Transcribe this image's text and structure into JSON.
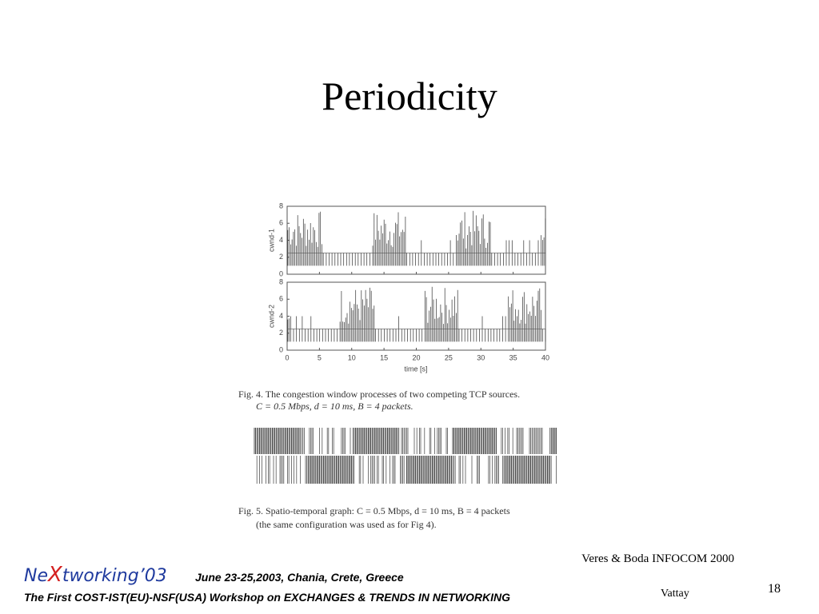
{
  "title": "Periodicity",
  "figure": {
    "plots": [
      {
        "ylabel": "cwnd-1",
        "ylim": [
          0,
          8
        ],
        "yticks": [
          0,
          2,
          4,
          6,
          8
        ]
      },
      {
        "ylabel": "cwnd-2",
        "ylim": [
          0,
          8
        ],
        "yticks": [
          0,
          2,
          4,
          6,
          8
        ]
      }
    ],
    "xlabel": "time [s]",
    "xlim": [
      0,
      40
    ],
    "xticks": [
      0,
      5,
      10,
      15,
      20,
      25,
      30,
      35,
      40
    ],
    "fig4_caption": [
      "Fig. 4.   The congestion window processes of two competing TCP sources.",
      "C = 0.5 Mbps, d = 10 ms, B = 4 packets."
    ],
    "fig5_caption": [
      "Fig. 5.   Spatio-temporal graph: C = 0.5 Mbps, d = 10 ms, B = 4 packets",
      "(the same configuration was used as for Fig 4)."
    ]
  },
  "citation": "Veres & Boda INFOCOM 2000",
  "footer": {
    "logo": [
      "Ne",
      "X",
      "tworking’03"
    ],
    "dates": "June 23-25,2003, Chania, Crete, Greece",
    "workshop": "The First COST-IST(EU)-NSF(USA) Workshop on EXCHANGES & TRENDS IN NETWORKING",
    "author": "Vattay",
    "page": "18"
  }
}
